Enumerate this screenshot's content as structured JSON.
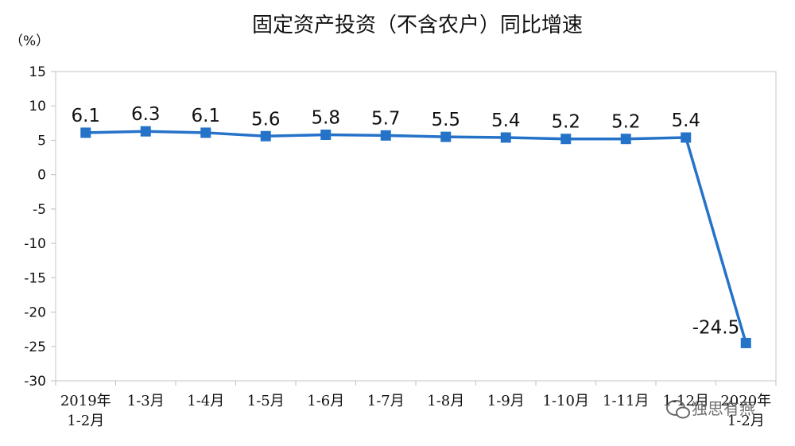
{
  "chart_data": {
    "type": "line",
    "title": "固定资产投资（不含农户）同比增速",
    "ylabel": "（%）",
    "xlabel": "",
    "ylim": [
      -30,
      15
    ],
    "yticks": [
      15,
      10,
      5,
      0,
      -5,
      -10,
      -15,
      -20,
      -25,
      -30
    ],
    "categories": [
      [
        "2019年",
        "1-2月"
      ],
      [
        "1-3月"
      ],
      [
        "1-4月"
      ],
      [
        "1-5月"
      ],
      [
        "1-6月"
      ],
      [
        "1-7月"
      ],
      [
        "1-8月"
      ],
      [
        "1-9月"
      ],
      [
        "1-10月"
      ],
      [
        "1-11月"
      ],
      [
        "1-12月"
      ],
      [
        "2020年",
        "1-2月"
      ]
    ],
    "series": [
      {
        "values": [
          6.1,
          6.3,
          6.1,
          5.6,
          5.8,
          5.7,
          5.5,
          5.4,
          5.2,
          5.2,
          5.4,
          -24.5
        ],
        "color": "#2572c9",
        "marker": "square"
      }
    ],
    "data_labels": [
      "6.1",
      "6.3",
      "6.1",
      "5.6",
      "5.8",
      "5.7",
      "5.5",
      "5.4",
      "5.2",
      "5.2",
      "5.4",
      "-24.5"
    ],
    "grid": false,
    "legend": "none"
  },
  "watermark": {
    "text": "独思有燕",
    "icon": "wechat-icon"
  }
}
